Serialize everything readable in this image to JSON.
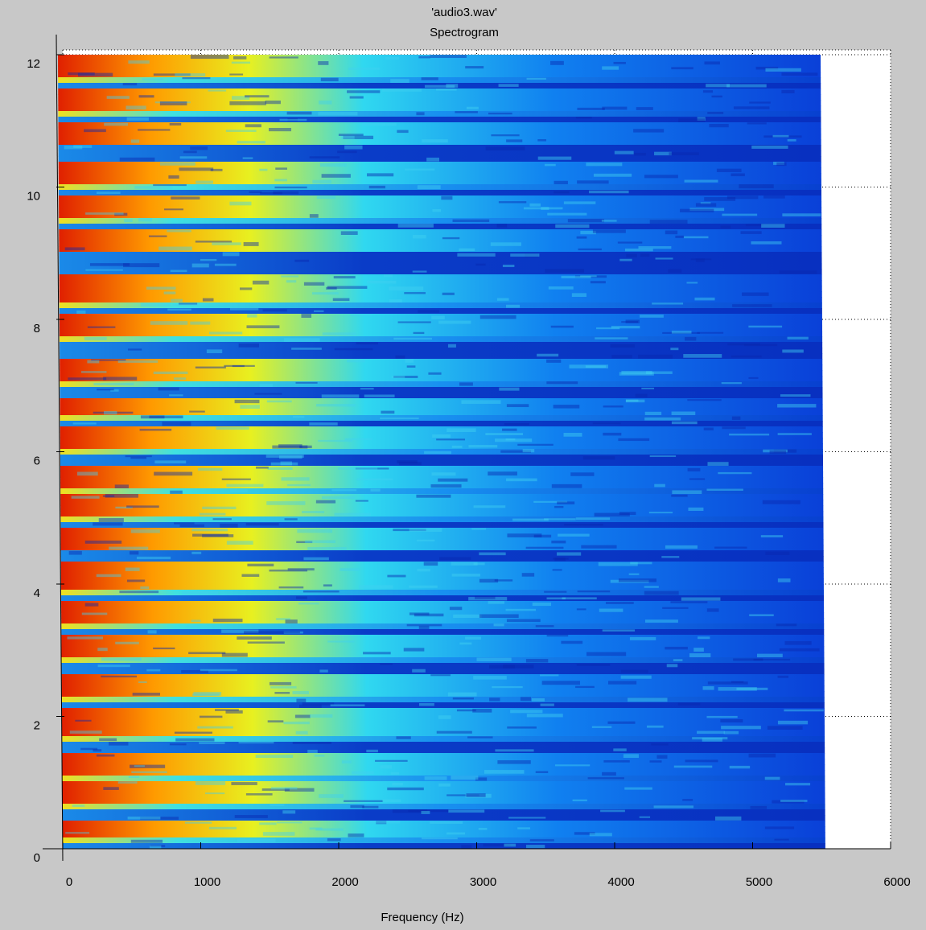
{
  "chart_data": {
    "type": "spectrogram",
    "title": "'audio3.wav'",
    "subtitle": "Spectrogram",
    "x_label": "Frequency (Hz)",
    "xlim": [
      0,
      6000
    ],
    "xticks": [
      0,
      1000,
      2000,
      3000,
      4000,
      5000,
      6000
    ],
    "ylim": [
      0,
      12
    ],
    "yticks": [
      0,
      2,
      4,
      6,
      8,
      10,
      12
    ],
    "grid": true
  }
}
